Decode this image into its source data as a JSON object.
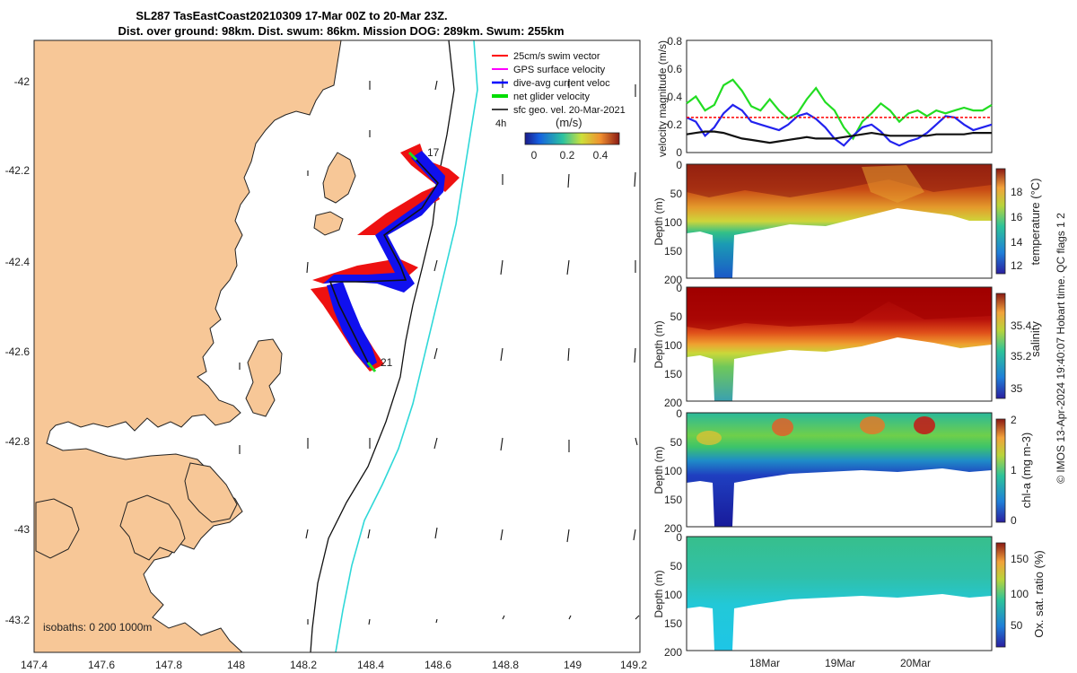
{
  "chart_data": [
    {
      "type": "map",
      "title_line1": "SL287 TasEastCoast20210309 17-Mar 00Z to 20-Mar 23Z.",
      "title_line2": "Dist. over ground: 98km. Dist. swum: 86km. Mission DOG: 289km. Swum: 255km",
      "xlim": [
        147.4,
        149.2
      ],
      "ylim": [
        -43.27,
        -41.9
      ],
      "x_ticks": [
        "147.4",
        "147.6",
        "147.8",
        "148",
        "148.2",
        "148.4",
        "148.6",
        "148.8",
        "149",
        "149.2"
      ],
      "y_ticks": [
        "-42",
        "-42.2",
        "-42.4",
        "-42.6",
        "-42.8",
        "-43",
        "-43.2"
      ],
      "legend": [
        {
          "label": "25cm/s swim vector",
          "color": "#ff0000"
        },
        {
          "label": "GPS surface velocity",
          "color": "#ff00ff"
        },
        {
          "label": "dive-avg current veloc",
          "color": "#0000ff"
        },
        {
          "label": "net glider velocity",
          "color": "#00dd00"
        },
        {
          "label": "sfc geo. vel. 20-Mar-2021",
          "color": "#000000"
        }
      ],
      "scale_label": "4h",
      "colorbar_title": "(m/s)",
      "colorbar_ticks": [
        "0",
        "0.2",
        "0.4"
      ],
      "track_labels": [
        "17",
        "21"
      ],
      "isobath_label": "isobaths: 0   200  1000m"
    },
    {
      "type": "line",
      "ylabel": "velocity magnitude (m/s)",
      "ylim": [
        0,
        0.8
      ],
      "y_ticks": [
        "0",
        "0.2",
        "0.4",
        "0.6",
        "0.8"
      ],
      "series": [
        {
          "name": "net glider velocity",
          "color": "#22dd22",
          "values": [
            0.35,
            0.4,
            0.3,
            0.34,
            0.48,
            0.52,
            0.44,
            0.33,
            0.3,
            0.38,
            0.3,
            0.24,
            0.28,
            0.38,
            0.46,
            0.36,
            0.3,
            0.18,
            0.1,
            0.22,
            0.28,
            0.35,
            0.3,
            0.22,
            0.28,
            0.3,
            0.26,
            0.3,
            0.28,
            0.3,
            0.32,
            0.3,
            0.3,
            0.34
          ]
        },
        {
          "name": "dive-avg current",
          "color": "#2222ee",
          "values": [
            0.25,
            0.22,
            0.12,
            0.18,
            0.28,
            0.34,
            0.3,
            0.22,
            0.2,
            0.18,
            0.16,
            0.2,
            0.26,
            0.28,
            0.24,
            0.18,
            0.1,
            0.05,
            0.12,
            0.18,
            0.2,
            0.15,
            0.08,
            0.05,
            0.08,
            0.1,
            0.14,
            0.2,
            0.26,
            0.25,
            0.2,
            0.16,
            0.18,
            0.2
          ]
        },
        {
          "name": "sfc geo. vel.",
          "color": "#111111",
          "values": [
            0.13,
            0.14,
            0.15,
            0.15,
            0.14,
            0.12,
            0.1,
            0.09,
            0.08,
            0.07,
            0.08,
            0.09,
            0.1,
            0.11,
            0.1,
            0.1,
            0.1,
            0.11,
            0.12,
            0.13,
            0.14,
            0.13,
            0.12,
            0.12,
            0.12,
            0.12,
            0.12,
            0.13,
            0.13,
            0.13,
            0.13,
            0.14,
            0.14,
            0.14
          ]
        },
        {
          "name": "swim 25cm/s",
          "color": "#ff0000",
          "values": [
            0.25,
            0.25,
            0.25,
            0.25,
            0.25,
            0.25,
            0.25,
            0.25,
            0.25,
            0.25,
            0.25,
            0.25,
            0.25,
            0.25,
            0.25,
            0.25,
            0.25,
            0.25,
            0.25,
            0.25,
            0.25,
            0.25,
            0.25,
            0.25,
            0.25,
            0.25,
            0.25,
            0.25,
            0.25,
            0.25,
            0.25,
            0.25,
            0.25,
            0.25
          ]
        }
      ]
    },
    {
      "type": "heatmap",
      "ylabel": "Depth (m)",
      "y_ticks": [
        "0",
        "50",
        "100",
        "150",
        "200"
      ],
      "colorbar_label": "temperature (°C)",
      "colorbar_ticks": [
        "12",
        "14",
        "16",
        "18"
      ]
    },
    {
      "type": "heatmap",
      "ylabel": "Depth (m)",
      "y_ticks": [
        "0",
        "50",
        "100",
        "150",
        "200"
      ],
      "colorbar_label": "salinity",
      "colorbar_ticks": [
        "35",
        "35.2",
        "35.4"
      ]
    },
    {
      "type": "heatmap",
      "ylabel": "Depth (m)",
      "y_ticks": [
        "0",
        "50",
        "100",
        "150",
        "200"
      ],
      "colorbar_label": "chl-a (mg m-3)",
      "colorbar_ticks": [
        "0",
        "1",
        "2"
      ]
    },
    {
      "type": "heatmap",
      "ylabel": "Depth (m)",
      "y_ticks": [
        "0",
        "50",
        "100",
        "150",
        "200"
      ],
      "x_ticks": [
        "18Mar",
        "19Mar",
        "20Mar"
      ],
      "colorbar_label": "Ox. sat. ratio (%)",
      "colorbar_ticks": [
        "50",
        "100",
        "150"
      ]
    }
  ],
  "side_note": "© IMOS 13-Apr-2024 19:40:07 Hobart time. QC flags 1  2",
  "colors": {
    "land": "#f7c797",
    "temp_hot": "#8b0000",
    "salt_hot": "#a00000",
    "oxy": "#35c49b"
  }
}
